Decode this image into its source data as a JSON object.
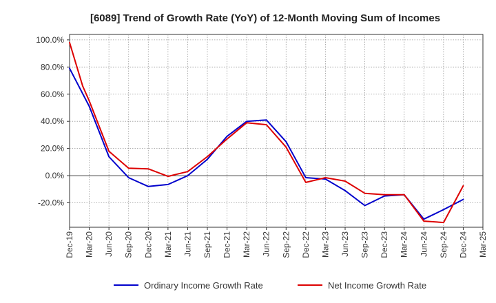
{
  "chart_data": {
    "type": "line",
    "title": "[6089]  Trend of Growth Rate (YoY) of 12-Month Moving Sum of Incomes",
    "xlabel": "",
    "ylabel": "",
    "x_tick_labels": [
      "Dec-19",
      "Mar-20",
      "Jun-20",
      "Sep-20",
      "Dec-20",
      "Mar-21",
      "Jun-21",
      "Sep-21",
      "Dec-21",
      "Mar-22",
      "Jun-22",
      "Sep-22",
      "Dec-22",
      "Mar-23",
      "Jun-23",
      "Sep-23",
      "Dec-23",
      "Mar-24",
      "Jun-24",
      "Sep-24",
      "Dec-24",
      "Mar-25"
    ],
    "y_tick_labels": [
      "100.0%",
      "80.0%",
      "60.0%",
      "40.0%",
      "20.0%",
      "0.0%",
      "-20.0%"
    ],
    "y_ticks": [
      100,
      80,
      60,
      40,
      20,
      0,
      -20
    ],
    "ylim": [
      -38,
      104
    ],
    "grid": true,
    "legend_position": "bottom",
    "x_periods": [
      "Dec-19",
      "Jan-20",
      "Feb-20",
      "Mar-20",
      "Apr-20",
      "May-20",
      "Jun-20",
      "Jul-20",
      "Aug-20",
      "Sep-20",
      "Oct-20",
      "Nov-20",
      "Dec-20",
      "Jan-21",
      "Feb-21",
      "Mar-21",
      "Apr-21",
      "May-21",
      "Jun-21",
      "Jul-21",
      "Aug-21",
      "Sep-21",
      "Oct-21",
      "Nov-21",
      "Dec-21",
      "Jan-22",
      "Feb-22",
      "Mar-22",
      "Apr-22",
      "May-22",
      "Jun-22",
      "Jul-22",
      "Aug-22",
      "Sep-22",
      "Oct-22",
      "Nov-22",
      "Dec-22",
      "Jan-23",
      "Feb-23",
      "Mar-23",
      "Apr-23",
      "May-23",
      "Jun-23",
      "Jul-23",
      "Aug-23",
      "Sep-23",
      "Oct-23",
      "Nov-23",
      "Dec-23",
      "Jan-24",
      "Feb-24",
      "Mar-24",
      "Apr-24",
      "May-24",
      "Jun-24",
      "Jul-24",
      "Aug-24",
      "Sep-24",
      "Oct-24",
      "Nov-24",
      "Dec-24",
      "Jan-25",
      "Feb-25",
      "Mar-25"
    ],
    "series": [
      {
        "name": "Ordinary Income Growth Rate",
        "color": "#0000cc",
        "points": [
          [
            "Dec-19",
            79
          ],
          [
            "Mar-20",
            51
          ],
          [
            "Jun-20",
            14
          ],
          [
            "Sep-20",
            -1.5
          ],
          [
            "Dec-20",
            -8
          ],
          [
            "Mar-21",
            -6.5
          ],
          [
            "Jun-21",
            0
          ],
          [
            "Sep-21",
            12
          ],
          [
            "Dec-21",
            29
          ],
          [
            "Mar-22",
            40
          ],
          [
            "Jun-22",
            41
          ],
          [
            "Sep-22",
            25
          ],
          [
            "Dec-22",
            -1.5
          ],
          [
            "Mar-23",
            -2.5
          ],
          [
            "Jun-23",
            -11
          ],
          [
            "Sep-23",
            -22
          ],
          [
            "Dec-23",
            -15
          ],
          [
            "Mar-24",
            -14
          ],
          [
            "Jun-24",
            -32
          ],
          [
            "Sep-24",
            -25
          ],
          [
            "Dec-24",
            -17.5
          ]
        ]
      },
      {
        "name": "Net Income Growth Rate",
        "color": "#dd0000",
        "points": [
          [
            "Dec-19",
            98
          ],
          [
            "Jan-20",
            82
          ],
          [
            "Feb-20",
            66
          ],
          [
            "Mar-20",
            55
          ],
          [
            "Jun-20",
            18
          ],
          [
            "Sep-20",
            5.5
          ],
          [
            "Dec-20",
            5
          ],
          [
            "Mar-21",
            -0.5
          ],
          [
            "Jun-21",
            3
          ],
          [
            "Sep-21",
            14
          ],
          [
            "Dec-21",
            27
          ],
          [
            "Mar-22",
            39
          ],
          [
            "Jun-22",
            37.5
          ],
          [
            "Sep-22",
            21
          ],
          [
            "Dec-22",
            -5
          ],
          [
            "Mar-23",
            -1.5
          ],
          [
            "Jun-23",
            -4
          ],
          [
            "Sep-23",
            -13
          ],
          [
            "Dec-23",
            -14
          ],
          [
            "Mar-24",
            -14
          ],
          [
            "Jun-24",
            -33.5
          ],
          [
            "Sep-24",
            -34.5
          ],
          [
            "Dec-24",
            -7.5
          ]
        ]
      }
    ]
  }
}
